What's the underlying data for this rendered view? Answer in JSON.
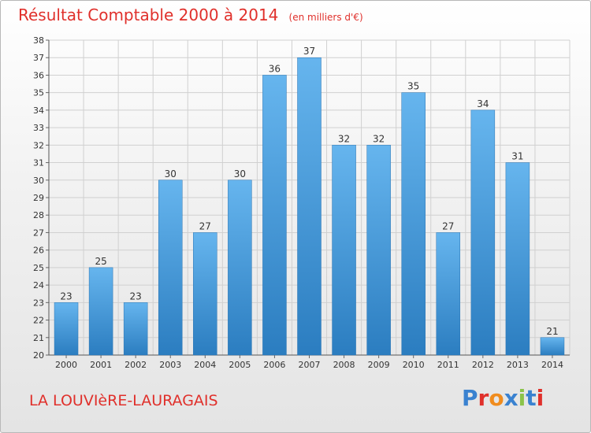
{
  "header": {
    "title": "Résultat Comptable 2000 à 2014",
    "unit": "(en milliers d'€)"
  },
  "footer": {
    "place": "LA LOUVIèRE-LAURAGAIS",
    "logo": "Proxiti",
    "logo_colors": [
      "#3a82d0",
      "#e0302b",
      "#f08c1e",
      "#3a82d0",
      "#8bc34a",
      "#3a82d0",
      "#e0302b"
    ]
  },
  "colors": {
    "bar_top": "#66b5ee",
    "bar_bottom": "#2b7dc0",
    "bar_edge": "#2a74b3",
    "title": "#e0302b",
    "grid": "#d0d0d0"
  },
  "chart_data": {
    "type": "bar",
    "categories": [
      "2000",
      "2001",
      "2002",
      "2003",
      "2004",
      "2005",
      "2006",
      "2007",
      "2008",
      "2009",
      "2010",
      "2011",
      "2012",
      "2013",
      "2014"
    ],
    "values": [
      23,
      25,
      23,
      30,
      27,
      30,
      36,
      37,
      32,
      32,
      35,
      27,
      34,
      31,
      21
    ],
    "ylim": [
      20,
      38
    ],
    "yticks": [
      20,
      21,
      22,
      23,
      24,
      25,
      26,
      27,
      28,
      29,
      30,
      31,
      32,
      33,
      34,
      35,
      36,
      37,
      38
    ],
    "grid": true
  }
}
